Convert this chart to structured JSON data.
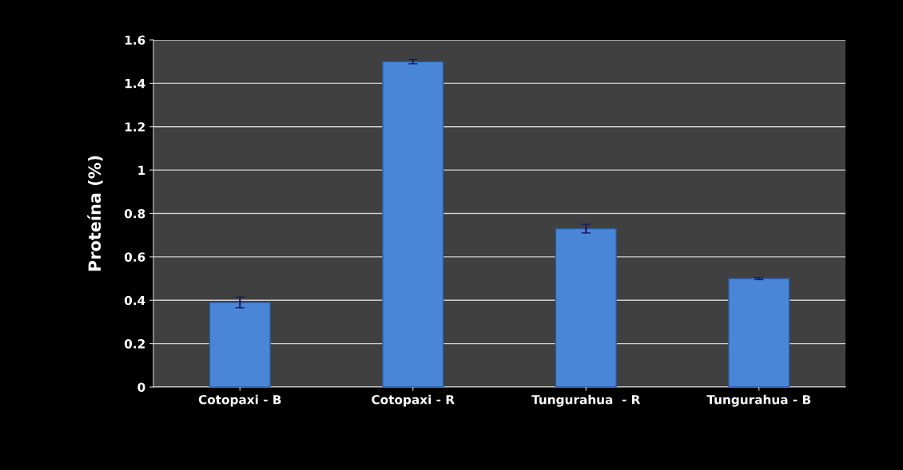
{
  "chart_data": {
    "type": "bar",
    "ylabel": "Proteína (%)",
    "categories": [
      "Cotopaxi - B",
      "Cotopaxi - R",
      "Tungurahua  - R",
      "Tungurahua - B"
    ],
    "values": [
      0.39,
      1.5,
      0.73,
      0.5
    ],
    "errors": [
      0.025,
      0.01,
      0.02,
      0.005
    ],
    "color": "#4a86d8",
    "ylim": [
      0,
      1.6
    ],
    "yticks": [
      0,
      0.2,
      0.4,
      0.6,
      0.8,
      1,
      1.2,
      1.4,
      1.6
    ],
    "grid": "y",
    "legend": false
  }
}
